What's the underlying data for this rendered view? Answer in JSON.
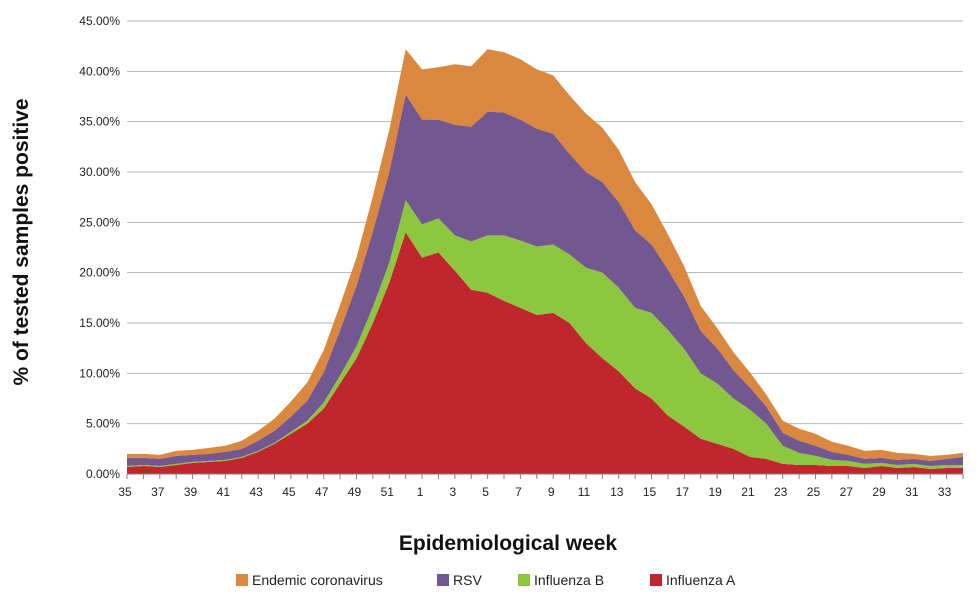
{
  "chart_data": {
    "type": "area",
    "stacked": true,
    "xlabel": "Epidemiological week",
    "ylabel": "% of tested samples positive",
    "ylim": [
      0,
      45
    ],
    "yticks": [
      0,
      5,
      10,
      15,
      20,
      25,
      30,
      35,
      40,
      45
    ],
    "ytick_labels": [
      "0.00%",
      "5.00%",
      "10.00%",
      "15.00%",
      "20.00%",
      "25.00%",
      "30.00%",
      "35.00%",
      "40.00%",
      "45.00%"
    ],
    "x": [
      "35",
      "36",
      "37",
      "38",
      "39",
      "40",
      "41",
      "42",
      "43",
      "44",
      "45",
      "46",
      "47",
      "48",
      "49",
      "50",
      "51",
      "52",
      "1",
      "2",
      "3",
      "4",
      "5",
      "6",
      "7",
      "8",
      "9",
      "10",
      "11",
      "12",
      "13",
      "14",
      "15",
      "16",
      "17",
      "18",
      "19",
      "20",
      "21",
      "22",
      "23",
      "24",
      "25",
      "26",
      "27",
      "28",
      "29",
      "30",
      "31",
      "32",
      "33",
      "34"
    ],
    "x_tick_labels": [
      "35",
      "37",
      "39",
      "41",
      "43",
      "45",
      "47",
      "49",
      "51",
      "1",
      "3",
      "5",
      "7",
      "9",
      "11",
      "13",
      "15",
      "17",
      "19",
      "21",
      "23",
      "25",
      "27",
      "29",
      "31",
      "33"
    ],
    "grid": true,
    "legend_position": "bottom",
    "series": [
      {
        "name": "Influenza A",
        "color": "#C0272D",
        "values": [
          0.7,
          0.8,
          0.7,
          0.9,
          1.1,
          1.2,
          1.3,
          1.6,
          2.2,
          3.0,
          4.0,
          5.0,
          6.5,
          9.0,
          11.5,
          15.0,
          19.0,
          24.0,
          21.5,
          22.0,
          20.2,
          18.3,
          18.0,
          17.2,
          16.5,
          15.8,
          16.0,
          15.0,
          13.0,
          11.5,
          10.2,
          8.5,
          7.5,
          5.8,
          4.7,
          3.5,
          3.0,
          2.5,
          1.7,
          1.5,
          1.0,
          0.9,
          0.9,
          0.8,
          0.8,
          0.6,
          0.8,
          0.6,
          0.7,
          0.5,
          0.6,
          0.6
        ]
      },
      {
        "name": "Influenza B",
        "color": "#8DC63F",
        "values": [
          0.1,
          0.1,
          0.1,
          0.1,
          0.1,
          0.1,
          0.1,
          0.1,
          0.1,
          0.1,
          0.2,
          0.3,
          0.6,
          0.8,
          1.2,
          1.6,
          2.0,
          3.2,
          3.3,
          3.4,
          3.5,
          4.8,
          5.7,
          6.5,
          6.7,
          6.8,
          6.8,
          6.8,
          7.5,
          8.5,
          8.3,
          8.0,
          8.5,
          8.5,
          7.7,
          6.5,
          6.0,
          5.0,
          4.7,
          3.5,
          1.8,
          1.2,
          0.9,
          0.6,
          0.5,
          0.4,
          0.3,
          0.3,
          0.3,
          0.3,
          0.3,
          0.3
        ]
      },
      {
        "name": "RSV",
        "color": "#735791",
        "values": [
          0.8,
          0.7,
          0.7,
          0.8,
          0.7,
          0.7,
          0.8,
          0.8,
          1.0,
          1.2,
          1.5,
          2.0,
          3.0,
          4.5,
          6.0,
          7.5,
          9.0,
          10.5,
          10.4,
          9.8,
          11.0,
          11.4,
          12.3,
          12.2,
          12.0,
          11.7,
          11.0,
          10.0,
          9.5,
          9.0,
          8.5,
          7.7,
          6.8,
          6.0,
          5.2,
          4.2,
          3.5,
          2.8,
          2.2,
          1.7,
          1.3,
          1.2,
          1.0,
          0.8,
          0.6,
          0.5,
          0.5,
          0.5,
          0.5,
          0.5,
          0.6,
          0.8
        ]
      },
      {
        "name": "Endemic coronavirus",
        "color": "#DA8840",
        "values": [
          0.4,
          0.4,
          0.4,
          0.5,
          0.5,
          0.6,
          0.6,
          0.8,
          1.0,
          1.2,
          1.5,
          1.8,
          2.2,
          2.5,
          2.8,
          3.5,
          4.2,
          4.5,
          5.0,
          5.2,
          6.0,
          6.0,
          6.2,
          6.0,
          6.0,
          5.9,
          5.8,
          5.8,
          5.8,
          5.4,
          5.2,
          4.8,
          4.0,
          3.5,
          3.0,
          2.5,
          2.0,
          1.8,
          1.5,
          1.2,
          1.2,
          1.2,
          1.2,
          1.0,
          0.9,
          0.8,
          0.8,
          0.7,
          0.5,
          0.5,
          0.4,
          0.4
        ]
      }
    ],
    "legend_order": [
      "Endemic coronavirus",
      "RSV",
      "Influenza B",
      "Influenza A"
    ]
  }
}
